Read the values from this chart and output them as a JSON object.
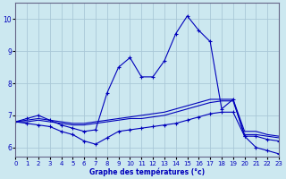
{
  "xlabel": "Graphe des températures (°c)",
  "background_color": "#cce8f0",
  "grid_color": "#aac8d8",
  "line_color": "#0000bb",
  "xlim": [
    0,
    23
  ],
  "ylim": [
    5.7,
    10.5
  ],
  "yticks": [
    6,
    7,
    8,
    9,
    10
  ],
  "xticks": [
    0,
    1,
    2,
    3,
    4,
    5,
    6,
    7,
    8,
    9,
    10,
    11,
    12,
    13,
    14,
    15,
    16,
    17,
    18,
    19,
    20,
    21,
    22,
    23
  ],
  "series": [
    {
      "x": [
        0,
        1,
        2,
        3,
        4,
        5,
        6,
        7,
        8,
        9,
        10,
        11,
        12,
        13,
        14,
        15,
        16,
        17,
        18,
        19,
        20,
        21,
        22,
        23
      ],
      "y": [
        6.8,
        6.9,
        7.0,
        6.85,
        6.7,
        6.6,
        6.5,
        6.55,
        7.7,
        8.5,
        8.8,
        8.2,
        8.2,
        8.7,
        9.55,
        10.1,
        9.65,
        9.3,
        7.2,
        7.5,
        6.35,
        6.0,
        5.9,
        5.8
      ],
      "marker": true
    },
    {
      "x": [
        0,
        1,
        2,
        3,
        4,
        5,
        6,
        7,
        8,
        9,
        10,
        11,
        12,
        13,
        14,
        15,
        16,
        17,
        18,
        19,
        20,
        21,
        22,
        23
      ],
      "y": [
        6.8,
        6.85,
        6.9,
        6.85,
        6.8,
        6.75,
        6.75,
        6.8,
        6.85,
        6.9,
        6.95,
        7.0,
        7.05,
        7.1,
        7.2,
        7.3,
        7.4,
        7.5,
        7.5,
        7.5,
        6.5,
        6.5,
        6.4,
        6.35
      ],
      "marker": false
    },
    {
      "x": [
        0,
        1,
        2,
        3,
        4,
        5,
        6,
        7,
        8,
        9,
        10,
        11,
        12,
        13,
        14,
        15,
        16,
        17,
        18,
        19,
        20,
        21,
        22,
        23
      ],
      "y": [
        6.8,
        6.8,
        6.85,
        6.8,
        6.75,
        6.7,
        6.7,
        6.75,
        6.8,
        6.85,
        6.9,
        6.9,
        6.95,
        7.0,
        7.1,
        7.2,
        7.3,
        7.4,
        7.45,
        7.45,
        6.4,
        6.4,
        6.35,
        6.3
      ],
      "marker": false
    },
    {
      "x": [
        0,
        1,
        2,
        3,
        4,
        5,
        6,
        7,
        8,
        9,
        10,
        11,
        12,
        13,
        14,
        15,
        16,
        17,
        18,
        19,
        20,
        21,
        22,
        23
      ],
      "y": [
        6.8,
        6.75,
        6.7,
        6.65,
        6.5,
        6.4,
        6.2,
        6.1,
        6.3,
        6.5,
        6.55,
        6.6,
        6.65,
        6.7,
        6.75,
        6.85,
        6.95,
        7.05,
        7.1,
        7.1,
        6.35,
        6.35,
        6.25,
        6.2
      ],
      "marker": true
    }
  ]
}
